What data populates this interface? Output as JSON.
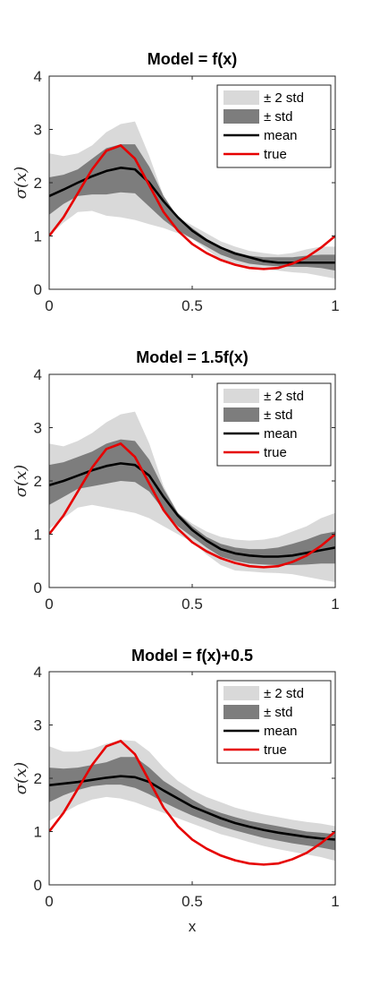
{
  "chart_data": [
    {
      "type": "area",
      "title": "Model = f(x)",
      "xlabel": "",
      "ylabel": "σ(x)",
      "xlim": [
        0,
        1
      ],
      "ylim": [
        0,
        4
      ],
      "xticks": [
        "0",
        "0.5",
        "1"
      ],
      "yticks": [
        "0",
        "1",
        "2",
        "3",
        "4"
      ],
      "legend": {
        "position": "top-right",
        "entries": [
          "± 2 std",
          "± std",
          "mean",
          "true"
        ]
      },
      "x": [
        0,
        0.05,
        0.1,
        0.15,
        0.2,
        0.25,
        0.3,
        0.35,
        0.4,
        0.45,
        0.5,
        0.55,
        0.6,
        0.65,
        0.7,
        0.75,
        0.8,
        0.85,
        0.9,
        0.95,
        1
      ],
      "series": [
        {
          "name": "± 2 std",
          "lower": [
            1.0,
            1.25,
            1.45,
            1.47,
            1.38,
            1.35,
            1.3,
            1.22,
            1.15,
            1.05,
            0.95,
            0.75,
            0.55,
            0.45,
            0.4,
            0.38,
            0.35,
            0.32,
            0.3,
            0.25,
            0.2
          ],
          "upper": [
            2.55,
            2.5,
            2.55,
            2.7,
            2.95,
            3.1,
            3.15,
            2.5,
            1.75,
            1.35,
            1.2,
            1.05,
            0.9,
            0.8,
            0.72,
            0.68,
            0.65,
            0.68,
            0.75,
            0.8,
            0.8
          ]
        },
        {
          "name": "± std",
          "lower": [
            1.4,
            1.6,
            1.75,
            1.78,
            1.78,
            1.82,
            1.8,
            1.55,
            1.3,
            1.1,
            0.95,
            0.8,
            0.65,
            0.55,
            0.48,
            0.45,
            0.43,
            0.42,
            0.42,
            0.4,
            0.35
          ],
          "upper": [
            2.1,
            2.15,
            2.25,
            2.45,
            2.65,
            2.72,
            2.72,
            2.3,
            1.75,
            1.35,
            1.15,
            0.95,
            0.8,
            0.7,
            0.63,
            0.6,
            0.6,
            0.6,
            0.63,
            0.65,
            0.65
          ]
        },
        {
          "name": "mean",
          "values": [
            1.75,
            1.87,
            2.0,
            2.12,
            2.22,
            2.28,
            2.25,
            2.0,
            1.65,
            1.35,
            1.1,
            0.92,
            0.78,
            0.67,
            0.6,
            0.53,
            0.5,
            0.5,
            0.5,
            0.5,
            0.5
          ]
        },
        {
          "name": "true",
          "values": [
            1.0,
            1.35,
            1.8,
            2.25,
            2.6,
            2.7,
            2.45,
            1.95,
            1.45,
            1.1,
            0.85,
            0.68,
            0.55,
            0.46,
            0.4,
            0.38,
            0.4,
            0.48,
            0.6,
            0.78,
            1.0
          ]
        }
      ]
    },
    {
      "type": "area",
      "title": "Model = 1.5f(x)",
      "xlabel": "",
      "ylabel": "σ(x)",
      "xlim": [
        0,
        1
      ],
      "ylim": [
        0,
        4
      ],
      "xticks": [
        "0",
        "0.5",
        "1"
      ],
      "yticks": [
        "0",
        "1",
        "2",
        "3",
        "4"
      ],
      "legend": {
        "position": "top-right",
        "entries": [
          "± 2 std",
          "± std",
          "mean",
          "true"
        ]
      },
      "x": [
        0,
        0.05,
        0.1,
        0.15,
        0.2,
        0.25,
        0.3,
        0.35,
        0.4,
        0.45,
        0.5,
        0.55,
        0.6,
        0.65,
        0.7,
        0.75,
        0.8,
        0.85,
        0.9,
        0.95,
        1
      ],
      "series": [
        {
          "name": "± 2 std",
          "lower": [
            1.1,
            1.3,
            1.5,
            1.55,
            1.5,
            1.45,
            1.4,
            1.3,
            1.15,
            1.0,
            0.85,
            0.62,
            0.42,
            0.32,
            0.3,
            0.28,
            0.27,
            0.25,
            0.2,
            0.15,
            0.1
          ],
          "upper": [
            2.7,
            2.65,
            2.75,
            2.9,
            3.1,
            3.25,
            3.3,
            2.7,
            1.9,
            1.4,
            1.2,
            1.05,
            0.95,
            0.9,
            0.88,
            0.9,
            0.95,
            1.05,
            1.15,
            1.3,
            1.4
          ]
        },
        {
          "name": "± std",
          "lower": [
            1.55,
            1.7,
            1.85,
            1.9,
            1.95,
            2.0,
            1.98,
            1.8,
            1.45,
            1.15,
            0.95,
            0.75,
            0.58,
            0.5,
            0.45,
            0.43,
            0.42,
            0.42,
            0.43,
            0.45,
            0.45
          ],
          "upper": [
            2.3,
            2.35,
            2.45,
            2.55,
            2.7,
            2.78,
            2.75,
            2.4,
            1.85,
            1.4,
            1.15,
            0.95,
            0.82,
            0.75,
            0.72,
            0.72,
            0.75,
            0.82,
            0.9,
            1.0,
            1.05
          ]
        },
        {
          "name": "mean",
          "values": [
            1.92,
            2.0,
            2.1,
            2.2,
            2.28,
            2.33,
            2.3,
            2.1,
            1.7,
            1.35,
            1.08,
            0.88,
            0.72,
            0.64,
            0.6,
            0.58,
            0.58,
            0.6,
            0.65,
            0.7,
            0.75
          ]
        },
        {
          "name": "true",
          "values": [
            1.0,
            1.35,
            1.8,
            2.25,
            2.6,
            2.7,
            2.45,
            1.95,
            1.45,
            1.1,
            0.85,
            0.68,
            0.55,
            0.46,
            0.4,
            0.38,
            0.4,
            0.48,
            0.6,
            0.78,
            1.0
          ]
        }
      ]
    },
    {
      "type": "area",
      "title": "Model = f(x)+0.5",
      "xlabel": "x",
      "ylabel": "σ(x)",
      "xlim": [
        0,
        1
      ],
      "ylim": [
        0,
        4
      ],
      "xticks": [
        "0",
        "0.5",
        "1"
      ],
      "yticks": [
        "0",
        "1",
        "2",
        "3",
        "4"
      ],
      "legend": {
        "position": "top-right",
        "entries": [
          "± 2 std",
          "± std",
          "mean",
          "true"
        ]
      },
      "x": [
        0,
        0.05,
        0.1,
        0.15,
        0.2,
        0.25,
        0.3,
        0.35,
        0.4,
        0.45,
        0.5,
        0.55,
        0.6,
        0.65,
        0.7,
        0.75,
        0.8,
        0.85,
        0.9,
        0.95,
        1
      ],
      "series": [
        {
          "name": "± 2 std",
          "lower": [
            1.2,
            1.35,
            1.5,
            1.6,
            1.65,
            1.62,
            1.55,
            1.45,
            1.35,
            1.25,
            1.15,
            1.05,
            0.95,
            0.88,
            0.8,
            0.73,
            0.67,
            0.62,
            0.57,
            0.52,
            0.45
          ],
          "upper": [
            2.6,
            2.5,
            2.5,
            2.55,
            2.65,
            2.72,
            2.7,
            2.5,
            2.2,
            1.95,
            1.78,
            1.65,
            1.55,
            1.45,
            1.38,
            1.32,
            1.27,
            1.22,
            1.18,
            1.15,
            1.1
          ]
        },
        {
          "name": "± std",
          "lower": [
            1.55,
            1.68,
            1.78,
            1.85,
            1.88,
            1.88,
            1.82,
            1.7,
            1.55,
            1.42,
            1.3,
            1.2,
            1.1,
            1.02,
            0.95,
            0.88,
            0.83,
            0.78,
            0.74,
            0.7,
            0.65
          ],
          "upper": [
            2.2,
            2.18,
            2.2,
            2.25,
            2.3,
            2.4,
            2.4,
            2.2,
            1.95,
            1.78,
            1.6,
            1.45,
            1.35,
            1.27,
            1.2,
            1.15,
            1.1,
            1.05,
            1.0,
            0.98,
            0.95
          ]
        },
        {
          "name": "mean",
          "values": [
            1.87,
            1.9,
            1.93,
            1.97,
            2.01,
            2.04,
            2.02,
            1.93,
            1.77,
            1.62,
            1.47,
            1.36,
            1.25,
            1.16,
            1.09,
            1.03,
            0.98,
            0.94,
            0.9,
            0.87,
            0.85
          ]
        },
        {
          "name": "true",
          "values": [
            1.0,
            1.35,
            1.8,
            2.25,
            2.6,
            2.7,
            2.45,
            1.95,
            1.45,
            1.1,
            0.85,
            0.68,
            0.55,
            0.46,
            0.4,
            0.38,
            0.4,
            0.48,
            0.6,
            0.78,
            1.0
          ]
        }
      ]
    }
  ],
  "style": {
    "band2_color": "#d9d9d9",
    "band1_color": "#7d7d7d",
    "mean_color": "#000000",
    "true_color": "#e60000"
  }
}
